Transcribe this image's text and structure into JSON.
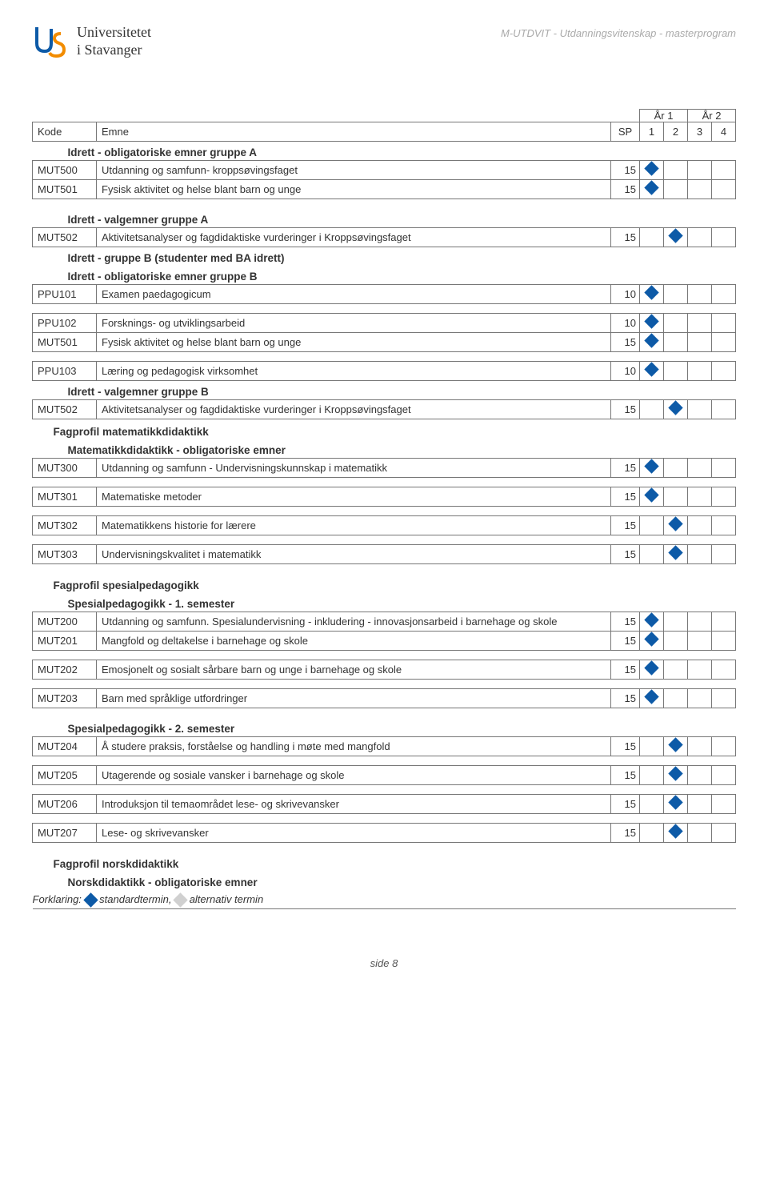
{
  "header": {
    "uni_line1": "Universitetet",
    "uni_line2": "i Stavanger",
    "right": "M-UTDVIT - Utdanningsvitenskap - masterprogram"
  },
  "years": {
    "y1": "År 1",
    "y2": "År 2"
  },
  "cols": {
    "kode": "Kode",
    "emne": "Emne",
    "sp": "SP",
    "s1": "1",
    "s2": "2",
    "s3": "3",
    "s4": "4"
  },
  "sections": [
    {
      "type": "sub",
      "label": "Idrett - obligatoriske emner gruppe A"
    },
    {
      "type": "row",
      "kode": "MUT500",
      "emne": "Utdanning og samfunn- kroppsøvingsfaget",
      "sp": "15",
      "sem": 1
    },
    {
      "type": "row",
      "kode": "MUT501",
      "emne": "Fysisk aktivitet og helse blant barn og unge",
      "sp": "15",
      "sem": 1
    },
    {
      "type": "gap"
    },
    {
      "type": "sub",
      "label": "Idrett - valgemner gruppe A"
    },
    {
      "type": "row",
      "kode": "MUT502",
      "emne": "Aktivitetsanalyser og fagdidaktiske vurderinger i Kroppsøvingsfaget",
      "sp": "15",
      "sem": 2
    },
    {
      "type": "sub",
      "label": "Idrett - gruppe B (studenter med BA idrett)"
    },
    {
      "type": "sub",
      "label": "Idrett - obligatoriske emner gruppe B"
    },
    {
      "type": "row",
      "kode": "PPU101",
      "emne": "Examen paedagogicum",
      "sp": "10",
      "sem": 1
    },
    {
      "type": "gap"
    },
    {
      "type": "row",
      "kode": "PPU102",
      "emne": "Forsknings- og utviklingsarbeid",
      "sp": "10",
      "sem": 1
    },
    {
      "type": "row",
      "kode": "MUT501",
      "emne": "Fysisk aktivitet og helse blant barn og unge",
      "sp": "15",
      "sem": 1
    },
    {
      "type": "gap"
    },
    {
      "type": "row",
      "kode": "PPU103",
      "emne": "Læring og pedagogisk virksomhet",
      "sp": "10",
      "sem": 1
    },
    {
      "type": "sub",
      "label": "Idrett - valgemner gruppe B"
    },
    {
      "type": "row",
      "kode": "MUT502",
      "emne": "Aktivitetsanalyser og fagdidaktiske vurderinger i Kroppsøvingsfaget",
      "sp": "15",
      "sem": 2
    },
    {
      "type": "sec",
      "label": "Fagprofil matematikkdidaktikk"
    },
    {
      "type": "sub",
      "label": "Matematikkdidaktikk - obligatoriske emner"
    },
    {
      "type": "row",
      "kode": "MUT300",
      "emne": "Utdanning og samfunn - Undervisningskunnskap i matematikk",
      "sp": "15",
      "sem": 1
    },
    {
      "type": "gap"
    },
    {
      "type": "row",
      "kode": "MUT301",
      "emne": "Matematiske metoder",
      "sp": "15",
      "sem": 1
    },
    {
      "type": "gap"
    },
    {
      "type": "row",
      "kode": "MUT302",
      "emne": "Matematikkens historie for lærere",
      "sp": "15",
      "sem": 2
    },
    {
      "type": "gap"
    },
    {
      "type": "row",
      "kode": "MUT303",
      "emne": "Undervisningskvalitet i matematikk",
      "sp": "15",
      "sem": 2
    },
    {
      "type": "gap"
    },
    {
      "type": "sec",
      "label": "Fagprofil spesialpedagogikk"
    },
    {
      "type": "sub",
      "label": "Spesialpedagogikk - 1. semester"
    },
    {
      "type": "row",
      "kode": "MUT200",
      "emne": "Utdanning og samfunn. Spesialundervisning - inkludering - innovasjonsarbeid i barnehage og skole",
      "sp": "15",
      "sem": 1
    },
    {
      "type": "row",
      "kode": "MUT201",
      "emne": "Mangfold og deltakelse i barnehage og skole",
      "sp": "15",
      "sem": 1
    },
    {
      "type": "gap"
    },
    {
      "type": "row",
      "kode": "MUT202",
      "emne": "Emosjonelt og sosialt sårbare barn og unge i barnehage og skole",
      "sp": "15",
      "sem": 1
    },
    {
      "type": "gap"
    },
    {
      "type": "row",
      "kode": "MUT203",
      "emne": "Barn med språklige utfordringer",
      "sp": "15",
      "sem": 1
    },
    {
      "type": "gap"
    },
    {
      "type": "sub",
      "label": "Spesialpedagogikk - 2. semester"
    },
    {
      "type": "row",
      "kode": "MUT204",
      "emne": "Å studere praksis, forståelse og handling i møte med mangfold",
      "sp": "15",
      "sem": 2
    },
    {
      "type": "gap"
    },
    {
      "type": "row",
      "kode": "MUT205",
      "emne": "Utagerende og sosiale vansker i barnehage og skole",
      "sp": "15",
      "sem": 2
    },
    {
      "type": "gap"
    },
    {
      "type": "row",
      "kode": "MUT206",
      "emne": "Introduksjon til temaområdet lese- og skrivevansker",
      "sp": "15",
      "sem": 2
    },
    {
      "type": "gap"
    },
    {
      "type": "row",
      "kode": "MUT207",
      "emne": "Lese- og skrivevansker",
      "sp": "15",
      "sem": 2
    },
    {
      "type": "gap"
    },
    {
      "type": "sec",
      "label": "Fagprofil norskdidaktikk"
    },
    {
      "type": "sub",
      "label": "Norskdidaktikk - obligatoriske emner"
    }
  ],
  "legend": {
    "prefix": "Forklaring:",
    "std": "standardtermin,",
    "alt": "alternativ termin"
  },
  "footer": "side 8",
  "colors": {
    "diamond": "#0d5aa7",
    "diamond_light": "#d0d0d0",
    "border": "#777777",
    "header_grey": "#aaaaaa"
  }
}
